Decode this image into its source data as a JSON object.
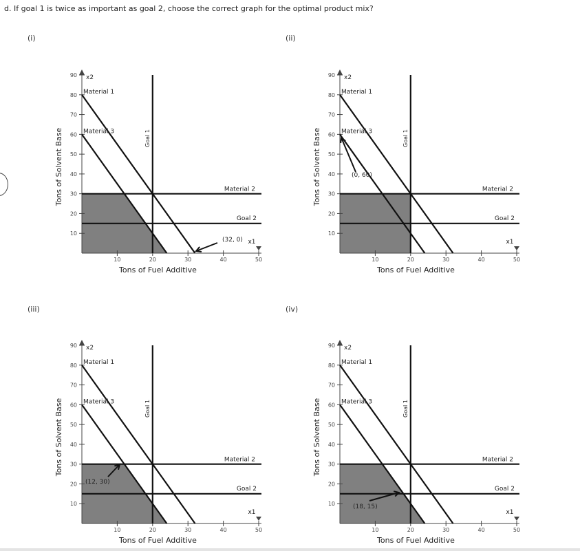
{
  "question": "d. If goal 1 is twice as important as goal 2, choose the correct graph for the optimal product mix?",
  "options": [
    "(i)",
    "(ii)",
    "(iii)",
    "(iv)"
  ],
  "chart_data": [
    {
      "type": "line",
      "option": "(i)",
      "xlabel": "Tons of Fuel Additive",
      "ylabel": "Tons of Solvent Base",
      "x_axis_name": "x1",
      "y_axis_name": "x2",
      "xlim": [
        0,
        50
      ],
      "ylim": [
        0,
        90
      ],
      "xticks": [
        10,
        20,
        30,
        40,
        50
      ],
      "yticks": [
        10,
        20,
        30,
        40,
        50,
        60,
        70,
        80,
        90
      ],
      "series": [
        {
          "name": "Material 1",
          "points": [
            [
              0,
              80
            ],
            [
              32,
              0
            ]
          ]
        },
        {
          "name": "Material 3",
          "points": [
            [
              0,
              60
            ],
            [
              24,
              0
            ]
          ]
        },
        {
          "name": "Material 2",
          "points": [
            [
              0,
              30
            ],
            [
              50,
              30
            ]
          ]
        },
        {
          "name": "Goal 2",
          "points": [
            [
              0,
              15
            ],
            [
              50,
              15
            ]
          ]
        },
        {
          "name": "Goal 1",
          "points": [
            [
              20,
              0
            ],
            [
              20,
              90
            ]
          ]
        }
      ],
      "shaded_region": [
        [
          0,
          0
        ],
        [
          0,
          30
        ],
        [
          12,
          30
        ],
        [
          24,
          0
        ]
      ],
      "annotation": {
        "text": "(32, 0)",
        "point": [
          32,
          0
        ]
      }
    },
    {
      "type": "line",
      "option": "(ii)",
      "xlabel": "Tons of Fuel Additive",
      "ylabel": "Tons of Solvent Base",
      "x_axis_name": "x1",
      "y_axis_name": "x2",
      "xlim": [
        0,
        50
      ],
      "ylim": [
        0,
        90
      ],
      "xticks": [
        10,
        20,
        30,
        40,
        50
      ],
      "yticks": [
        10,
        20,
        30,
        40,
        50,
        60,
        70,
        80,
        90
      ],
      "series": [
        {
          "name": "Material 1",
          "points": [
            [
              0,
              80
            ],
            [
              32,
              0
            ]
          ]
        },
        {
          "name": "Material 3",
          "points": [
            [
              0,
              60
            ],
            [
              24,
              0
            ]
          ]
        },
        {
          "name": "Material 2",
          "points": [
            [
              0,
              30
            ],
            [
              50,
              30
            ]
          ]
        },
        {
          "name": "Goal 2",
          "points": [
            [
              0,
              15
            ],
            [
              50,
              15
            ]
          ]
        },
        {
          "name": "Goal 1",
          "points": [
            [
              20,
              0
            ],
            [
              20,
              90
            ]
          ]
        }
      ],
      "shaded_region": [
        [
          0,
          0
        ],
        [
          0,
          30
        ],
        [
          20,
          30
        ],
        [
          20,
          0
        ]
      ],
      "annotation": {
        "text": "(0, 60)",
        "point": [
          0,
          60
        ]
      }
    },
    {
      "type": "line",
      "option": "(iii)",
      "xlabel": "Tons of Fuel Additive",
      "ylabel": "Tons of Solvent Base",
      "x_axis_name": "x1",
      "y_axis_name": "x2",
      "xlim": [
        0,
        50
      ],
      "ylim": [
        0,
        90
      ],
      "xticks": [
        10,
        20,
        30,
        40,
        50
      ],
      "yticks": [
        10,
        20,
        30,
        40,
        50,
        60,
        70,
        80,
        90
      ],
      "series": [
        {
          "name": "Material 1",
          "points": [
            [
              0,
              80
            ],
            [
              32,
              0
            ]
          ]
        },
        {
          "name": "Material 3",
          "points": [
            [
              0,
              60
            ],
            [
              24,
              0
            ]
          ]
        },
        {
          "name": "Material 2",
          "points": [
            [
              0,
              30
            ],
            [
              50,
              30
            ]
          ]
        },
        {
          "name": "Goal 2",
          "points": [
            [
              0,
              15
            ],
            [
              50,
              15
            ]
          ]
        },
        {
          "name": "Goal 1",
          "points": [
            [
              20,
              0
            ],
            [
              20,
              90
            ]
          ]
        }
      ],
      "shaded_region": [
        [
          0,
          0
        ],
        [
          0,
          30
        ],
        [
          12,
          30
        ],
        [
          24,
          0
        ]
      ],
      "annotation": {
        "text": "(12, 30)",
        "point": [
          12,
          30
        ]
      }
    },
    {
      "type": "line",
      "option": "(iv)",
      "xlabel": "Tons of Fuel Additive",
      "ylabel": "Tons of Solvent Base",
      "x_axis_name": "x1",
      "y_axis_name": "x2",
      "xlim": [
        0,
        50
      ],
      "ylim": [
        0,
        90
      ],
      "xticks": [
        10,
        20,
        30,
        40,
        50
      ],
      "yticks": [
        10,
        20,
        30,
        40,
        50,
        60,
        70,
        80,
        90
      ],
      "series": [
        {
          "name": "Material 1",
          "points": [
            [
              0,
              80
            ],
            [
              32,
              0
            ]
          ]
        },
        {
          "name": "Material 3",
          "points": [
            [
              0,
              60
            ],
            [
              24,
              0
            ]
          ]
        },
        {
          "name": "Material 2",
          "points": [
            [
              0,
              30
            ],
            [
              50,
              30
            ]
          ]
        },
        {
          "name": "Goal 2",
          "points": [
            [
              0,
              15
            ],
            [
              50,
              15
            ]
          ]
        },
        {
          "name": "Goal 1",
          "points": [
            [
              20,
              0
            ],
            [
              20,
              90
            ]
          ]
        }
      ],
      "shaded_region": [
        [
          0,
          0
        ],
        [
          0,
          30
        ],
        [
          12,
          30
        ],
        [
          24,
          0
        ]
      ],
      "annotation": {
        "text": "(18, 15)",
        "point": [
          18,
          15
        ]
      }
    }
  ],
  "colors": {
    "shade": "#808080",
    "line": "#111111",
    "axis": "#444444"
  }
}
